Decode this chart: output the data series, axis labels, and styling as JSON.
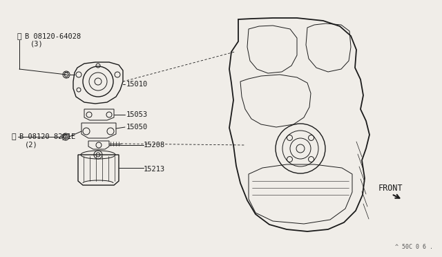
{
  "bg_color": "#f0ede8",
  "line_color": "#1a1a1a",
  "labels": {
    "part_b1": "B 08120-64028",
    "part_b1_sub": "(3)",
    "part_b2": "B 08120-8201E",
    "part_b2_sub": "(2)",
    "p15010": "15010",
    "p15053": "15053",
    "p15050": "15050",
    "p15208": "15208",
    "p15213": "15213",
    "front": "FRONT",
    "fig_code": "^ 50C 0 6 ."
  },
  "lfs": 7.5
}
